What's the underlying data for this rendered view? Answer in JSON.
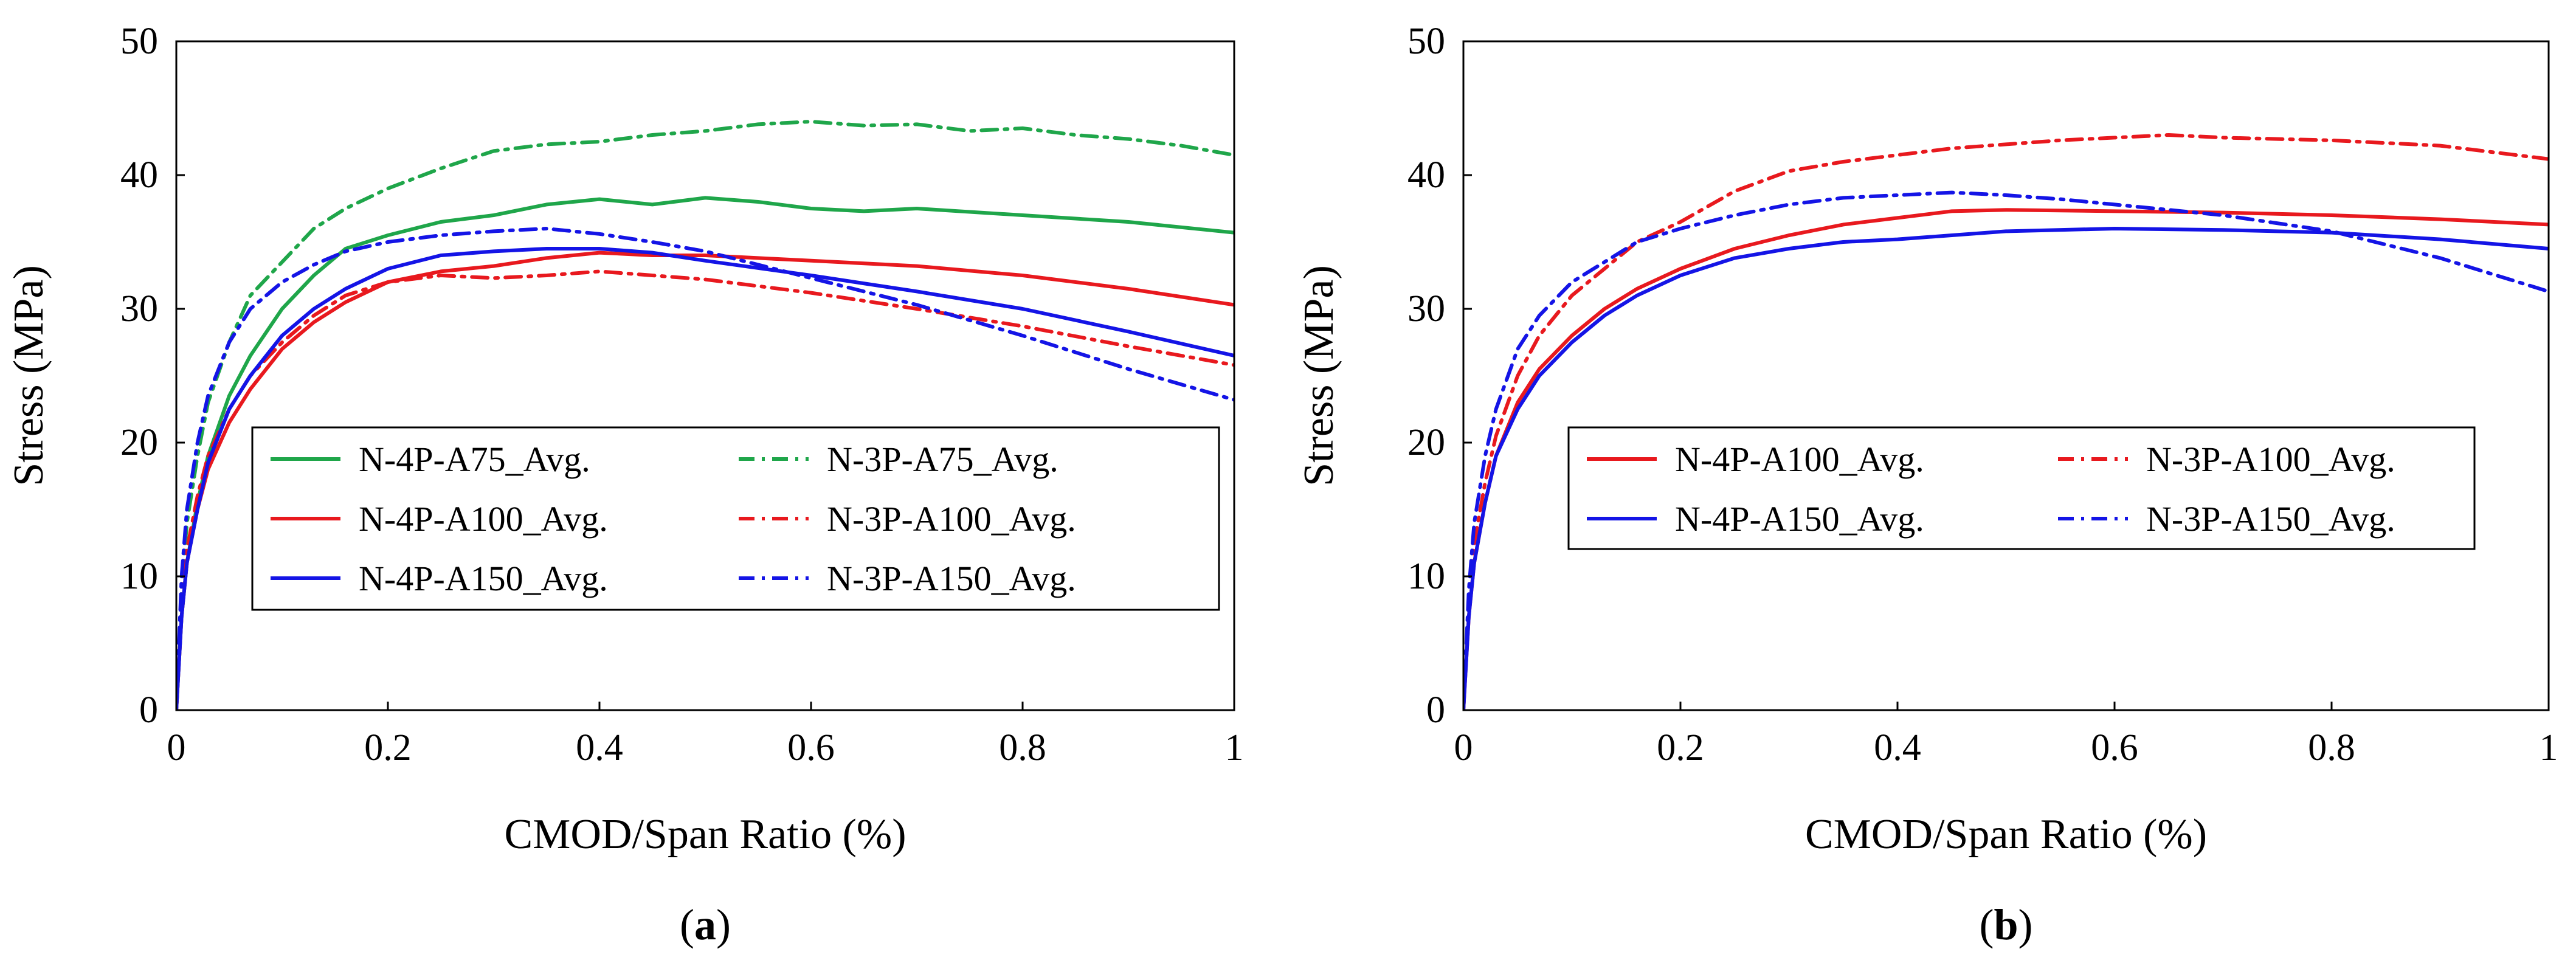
{
  "chart_data": [
    {
      "type": "line",
      "panel_label": "a",
      "xlabel": "CMOD/Span Ratio (%)",
      "ylabel": "Stress (MPa)",
      "xlim": [
        0,
        1
      ],
      "ylim": [
        0,
        50
      ],
      "xticks": [
        0,
        0.2,
        0.4,
        0.6,
        0.8,
        1
      ],
      "xtick_labels": [
        "0",
        "0.2",
        "0.4",
        "0.6",
        "0.8",
        "1"
      ],
      "yticks": [
        0,
        10,
        20,
        30,
        40,
        50
      ],
      "ytick_labels": [
        "0",
        "10",
        "20",
        "30",
        "40",
        "50"
      ],
      "legend": {
        "columns": 2,
        "placement": "lower-center"
      },
      "series": [
        {
          "name": "N-4P-A75_Avg.",
          "color": "#1FA64A",
          "dash": "solid",
          "x": [
            0,
            0.005,
            0.01,
            0.02,
            0.03,
            0.05,
            0.07,
            0.1,
            0.13,
            0.16,
            0.2,
            0.25,
            0.3,
            0.35,
            0.4,
            0.45,
            0.5,
            0.55,
            0.6,
            0.65,
            0.7,
            0.8,
            0.9,
            1.0
          ],
          "y": [
            0,
            7,
            11,
            15.5,
            19,
            23.5,
            26.5,
            30,
            32.5,
            34.5,
            35.5,
            36.5,
            37,
            37.8,
            38.2,
            37.8,
            38.3,
            38,
            37.5,
            37.3,
            37.5,
            37,
            36.5,
            35.7
          ]
        },
        {
          "name": "N-3P-A75_Avg.",
          "color": "#1FA64A",
          "dash": "dashdot",
          "x": [
            0,
            0.005,
            0.01,
            0.02,
            0.03,
            0.05,
            0.07,
            0.1,
            0.13,
            0.16,
            0.2,
            0.25,
            0.3,
            0.35,
            0.4,
            0.45,
            0.5,
            0.55,
            0.6,
            0.65,
            0.7,
            0.75,
            0.8,
            0.85,
            0.9,
            0.95,
            1.0
          ],
          "y": [
            0,
            9,
            14,
            19,
            23,
            27.5,
            31,
            33.5,
            36,
            37.5,
            39,
            40.5,
            41.8,
            42.3,
            42.5,
            43,
            43.3,
            43.8,
            44,
            43.7,
            43.8,
            43.3,
            43.5,
            43,
            42.7,
            42.2,
            41.5
          ]
        },
        {
          "name": "N-4P-A100_Avg.",
          "color": "#E8191E",
          "dash": "solid",
          "x": [
            0,
            0.005,
            0.01,
            0.02,
            0.03,
            0.05,
            0.07,
            0.1,
            0.13,
            0.16,
            0.2,
            0.25,
            0.3,
            0.35,
            0.4,
            0.45,
            0.5,
            0.55,
            0.6,
            0.7,
            0.8,
            0.9,
            1.0
          ],
          "y": [
            0,
            7,
            11,
            15,
            18,
            21.5,
            24,
            27,
            29,
            30.5,
            32,
            32.8,
            33.2,
            33.8,
            34.2,
            34,
            34,
            33.8,
            33.6,
            33.2,
            32.5,
            31.5,
            30.3
          ]
        },
        {
          "name": "N-3P-A100_Avg.",
          "color": "#E8191E",
          "dash": "dashdot",
          "x": [
            0,
            0.005,
            0.01,
            0.02,
            0.03,
            0.05,
            0.07,
            0.1,
            0.13,
            0.16,
            0.2,
            0.25,
            0.3,
            0.35,
            0.4,
            0.45,
            0.5,
            0.6,
            0.7,
            0.8,
            0.9,
            1.0
          ],
          "y": [
            0,
            8,
            12,
            16,
            19,
            22.5,
            25,
            27.5,
            29.5,
            31,
            32,
            32.5,
            32.3,
            32.5,
            32.8,
            32.5,
            32.2,
            31.2,
            30,
            28.7,
            27.2,
            25.8
          ]
        },
        {
          "name": "N-4P-A150_Avg.",
          "color": "#1414E6",
          "dash": "solid",
          "x": [
            0,
            0.005,
            0.01,
            0.02,
            0.03,
            0.05,
            0.07,
            0.1,
            0.13,
            0.16,
            0.2,
            0.25,
            0.3,
            0.35,
            0.4,
            0.45,
            0.5,
            0.6,
            0.7,
            0.8,
            0.9,
            1.0
          ],
          "y": [
            0,
            7,
            11,
            15,
            18.5,
            22.5,
            25,
            28,
            30,
            31.5,
            33,
            34,
            34.3,
            34.5,
            34.5,
            34.2,
            33.6,
            32.5,
            31.3,
            30,
            28.3,
            26.5
          ]
        },
        {
          "name": "N-3P-A150_Avg.",
          "color": "#1414E6",
          "dash": "dashdot",
          "x": [
            0,
            0.005,
            0.01,
            0.02,
            0.03,
            0.05,
            0.07,
            0.1,
            0.13,
            0.16,
            0.2,
            0.25,
            0.3,
            0.35,
            0.4,
            0.45,
            0.5,
            0.55,
            0.6,
            0.7,
            0.8,
            0.9,
            1.0
          ],
          "y": [
            0,
            10,
            15,
            20,
            23.5,
            27.5,
            30,
            32,
            33.3,
            34.3,
            35,
            35.5,
            35.8,
            36,
            35.6,
            35,
            34.3,
            33.3,
            32.3,
            30.3,
            28,
            25.5,
            23.2
          ]
        }
      ]
    },
    {
      "type": "line",
      "panel_label": "b",
      "xlabel": "CMOD/Span Ratio (%)",
      "ylabel": "Stress (MPa)",
      "xlim": [
        0,
        1
      ],
      "ylim": [
        0,
        50
      ],
      "xticks": [
        0,
        0.2,
        0.4,
        0.6,
        0.8,
        1
      ],
      "xtick_labels": [
        "0",
        "0.2",
        "0.4",
        "0.6",
        "0.8",
        "1"
      ],
      "yticks": [
        0,
        10,
        20,
        30,
        40,
        50
      ],
      "ytick_labels": [
        "0",
        "10",
        "20",
        "30",
        "40",
        "50"
      ],
      "legend": {
        "columns": 2,
        "placement": "lower-right"
      },
      "series": [
        {
          "name": "N-4P-A100_Avg.",
          "color": "#E8191E",
          "dash": "solid",
          "x": [
            0,
            0.005,
            0.01,
            0.02,
            0.03,
            0.05,
            0.07,
            0.1,
            0.13,
            0.16,
            0.2,
            0.25,
            0.3,
            0.35,
            0.4,
            0.45,
            0.5,
            0.6,
            0.7,
            0.8,
            0.9,
            1.0
          ],
          "y": [
            0,
            7,
            11,
            15.5,
            19,
            23,
            25.5,
            28,
            30,
            31.5,
            33,
            34.5,
            35.5,
            36.3,
            36.8,
            37.3,
            37.4,
            37.3,
            37.2,
            37,
            36.7,
            36.3
          ]
        },
        {
          "name": "N-3P-A100_Avg.",
          "color": "#E8191E",
          "dash": "dashdot",
          "x": [
            0,
            0.005,
            0.01,
            0.02,
            0.03,
            0.05,
            0.07,
            0.1,
            0.13,
            0.16,
            0.2,
            0.25,
            0.3,
            0.35,
            0.4,
            0.45,
            0.5,
            0.55,
            0.6,
            0.65,
            0.7,
            0.8,
            0.9,
            1.0
          ],
          "y": [
            0,
            8,
            12.5,
            17,
            20.5,
            25,
            28,
            31,
            33,
            35,
            36.5,
            38.8,
            40.3,
            41,
            41.5,
            42,
            42.3,
            42.6,
            42.8,
            43,
            42.8,
            42.6,
            42.2,
            41.2
          ]
        },
        {
          "name": "N-4P-A150_Avg.",
          "color": "#1414E6",
          "dash": "solid",
          "x": [
            0,
            0.005,
            0.01,
            0.02,
            0.03,
            0.05,
            0.07,
            0.1,
            0.13,
            0.16,
            0.2,
            0.25,
            0.3,
            0.35,
            0.4,
            0.45,
            0.5,
            0.6,
            0.7,
            0.8,
            0.9,
            1.0
          ],
          "y": [
            0,
            7,
            11,
            15.5,
            19,
            22.5,
            25,
            27.5,
            29.5,
            31,
            32.5,
            33.8,
            34.5,
            35,
            35.2,
            35.5,
            35.8,
            36,
            35.9,
            35.7,
            35.2,
            34.5
          ]
        },
        {
          "name": "N-3P-A150_Avg.",
          "color": "#1414E6",
          "dash": "dashdot",
          "x": [
            0,
            0.005,
            0.01,
            0.02,
            0.03,
            0.05,
            0.07,
            0.1,
            0.13,
            0.16,
            0.2,
            0.25,
            0.3,
            0.35,
            0.4,
            0.45,
            0.5,
            0.55,
            0.6,
            0.7,
            0.8,
            0.9,
            1.0
          ],
          "y": [
            0,
            9,
            14,
            19,
            22.5,
            27,
            29.5,
            32,
            33.5,
            35,
            36,
            37,
            37.8,
            38.3,
            38.5,
            38.7,
            38.5,
            38.2,
            37.8,
            37,
            35.8,
            33.8,
            31.3
          ]
        }
      ]
    }
  ]
}
